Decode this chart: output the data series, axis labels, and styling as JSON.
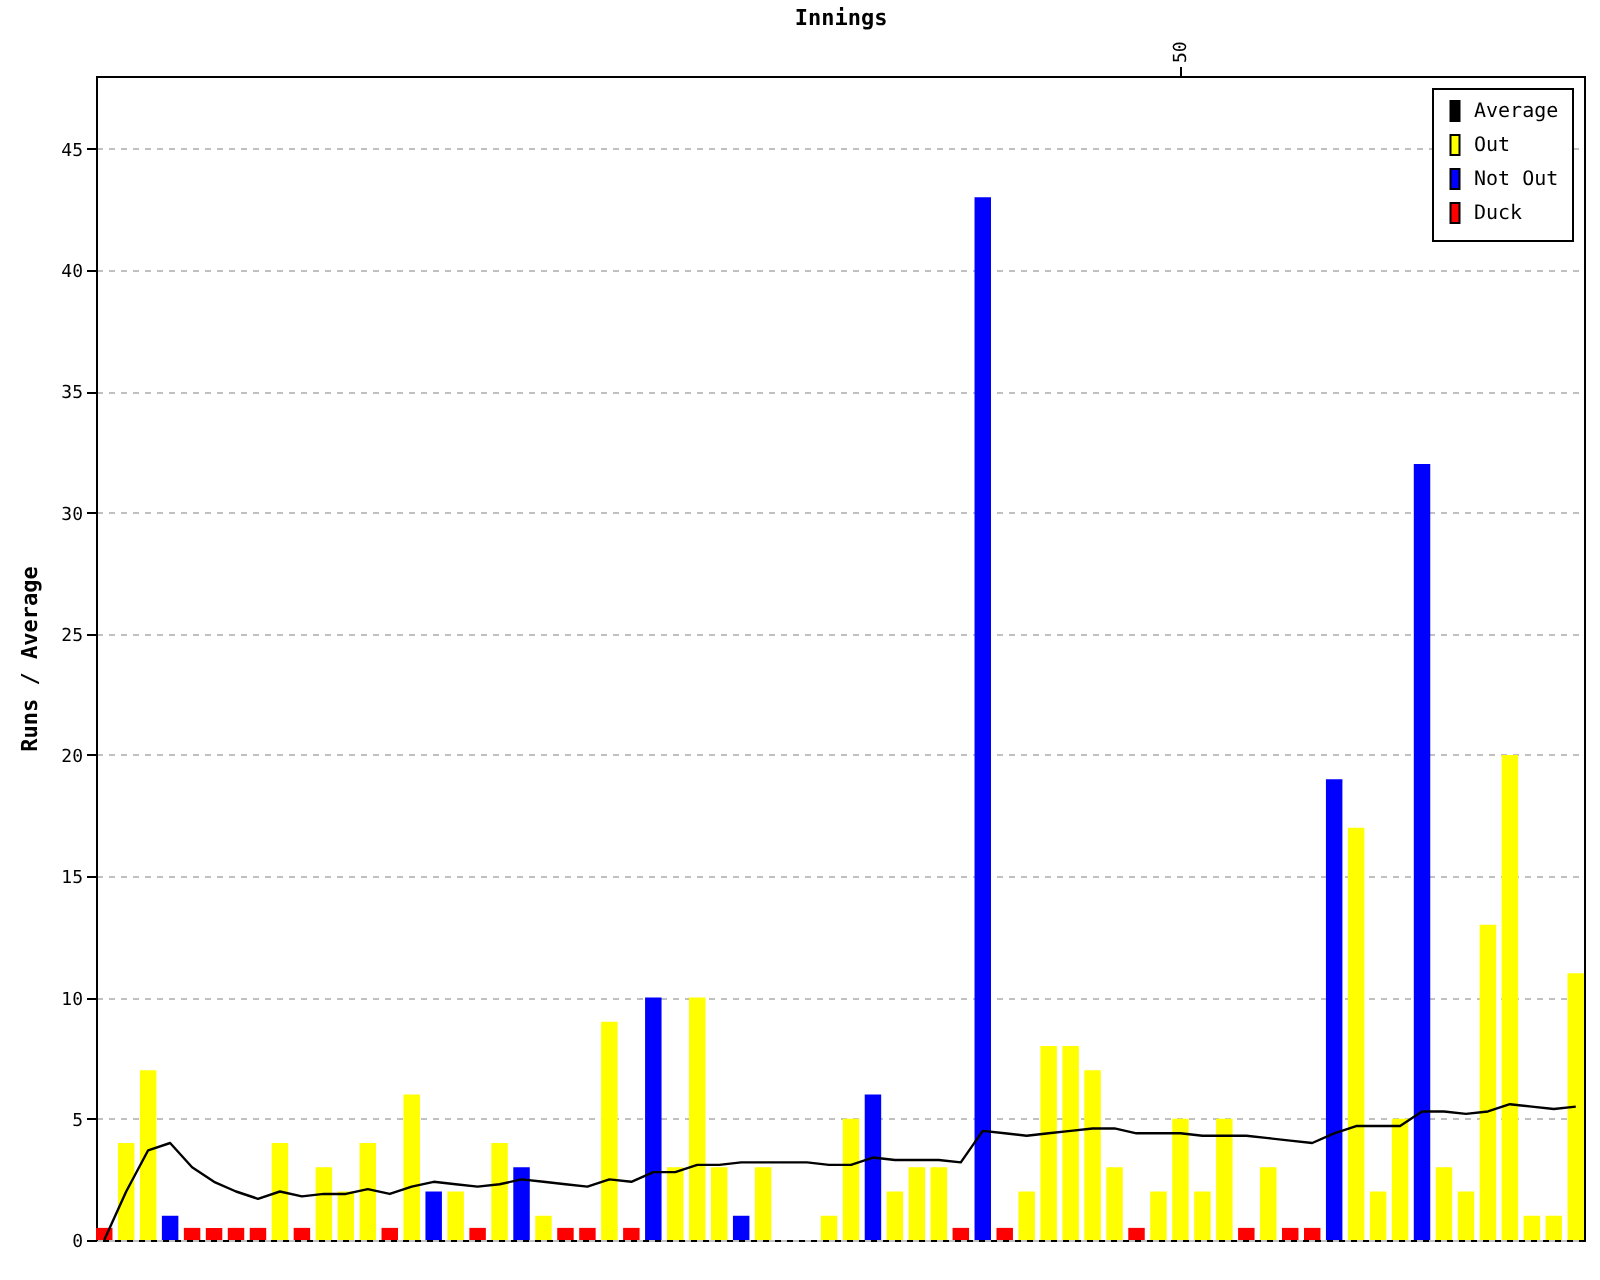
{
  "chart_data": {
    "type": "bar",
    "xlabel": "Innings",
    "ylabel": "Runs / Average",
    "categories": [
      null,
      null,
      null,
      null,
      null,
      null,
      null,
      null,
      null,
      null,
      null,
      null,
      null,
      null,
      null,
      null,
      null,
      null,
      null,
      null,
      null,
      null,
      null,
      null,
      null,
      null,
      null,
      null,
      null,
      null,
      null,
      null,
      null,
      null,
      null,
      null,
      null,
      null,
      null,
      null,
      null,
      null,
      null,
      null,
      null,
      null,
      null,
      null,
      null,
      "50",
      null,
      null,
      null,
      null,
      null,
      null,
      null,
      null,
      null,
      null,
      null,
      null,
      null,
      null,
      null,
      null,
      null,
      null
    ],
    "ylim": [
      0,
      48
    ],
    "yticks": [
      0,
      5,
      10,
      15,
      20,
      25,
      30,
      35,
      40,
      45
    ],
    "grid": "y",
    "legend": "top right",
    "series": [
      {
        "name": "Average",
        "type": "line",
        "color": "#000000",
        "values": [
          0,
          2,
          3.7,
          4,
          3,
          2.4,
          2,
          1.7,
          2,
          1.8,
          1.9,
          1.9,
          2.1,
          1.9,
          2.2,
          2.4,
          2.3,
          2.2,
          2.3,
          2.5,
          2.4,
          2.3,
          2.2,
          2.5,
          2.4,
          2.8,
          2.8,
          3.1,
          3.1,
          3.2,
          3.2,
          3.2,
          3.2,
          3.1,
          3.1,
          3.4,
          3.3,
          3.3,
          3.3,
          3.2,
          4.5,
          4.4,
          4.3,
          4.4,
          4.5,
          4.6,
          4.6,
          4.4,
          4.4,
          4.4,
          4.3,
          4.3,
          4.3,
          4.2,
          4.1,
          4.0,
          4.4,
          4.7,
          4.7,
          4.7,
          5.3,
          5.3,
          5.2,
          5.3,
          5.6,
          5.5,
          5.4,
          5.5
        ]
      },
      {
        "name": "Out",
        "color": "#ffff00",
        "values": [
          null,
          4,
          7,
          null,
          null,
          null,
          null,
          null,
          4,
          null,
          3,
          2,
          4,
          null,
          6,
          null,
          2,
          null,
          4,
          null,
          1,
          null,
          null,
          9,
          null,
          null,
          3,
          10,
          3,
          null,
          3,
          null,
          null,
          1,
          5,
          null,
          2,
          3,
          3,
          null,
          null,
          null,
          2,
          8,
          8,
          7,
          3,
          null,
          2,
          5,
          2,
          5,
          null,
          3,
          null,
          null,
          null,
          17,
          2,
          5,
          null,
          3,
          2,
          13,
          20,
          1,
          1,
          11
        ]
      },
      {
        "name": "Not Out",
        "color": "#0000ff",
        "values": [
          null,
          null,
          null,
          1,
          null,
          null,
          null,
          null,
          null,
          null,
          null,
          null,
          null,
          null,
          null,
          2,
          null,
          null,
          null,
          3,
          null,
          null,
          null,
          null,
          null,
          10,
          null,
          null,
          null,
          1,
          null,
          null,
          null,
          null,
          null,
          6,
          null,
          null,
          null,
          null,
          43,
          null,
          null,
          null,
          null,
          null,
          null,
          null,
          null,
          null,
          null,
          null,
          null,
          null,
          null,
          null,
          19,
          null,
          null,
          null,
          32,
          null,
          null,
          null,
          null,
          null,
          null,
          null
        ]
      },
      {
        "name": "Duck",
        "color": "#ff0000",
        "values": [
          0.5,
          null,
          null,
          null,
          0.5,
          0.5,
          0.5,
          0.5,
          null,
          0.5,
          null,
          null,
          null,
          0.5,
          null,
          null,
          null,
          0.5,
          null,
          null,
          null,
          0.5,
          0.5,
          null,
          0.5,
          null,
          null,
          null,
          null,
          null,
          null,
          null,
          null,
          null,
          null,
          null,
          null,
          null,
          null,
          0.5,
          null,
          0.5,
          null,
          null,
          null,
          null,
          null,
          0.5,
          null,
          null,
          null,
          null,
          0.5,
          null,
          0.5,
          0.5,
          null,
          null,
          null,
          null,
          null,
          null,
          null,
          null,
          null,
          null,
          null,
          null
        ]
      }
    ]
  }
}
